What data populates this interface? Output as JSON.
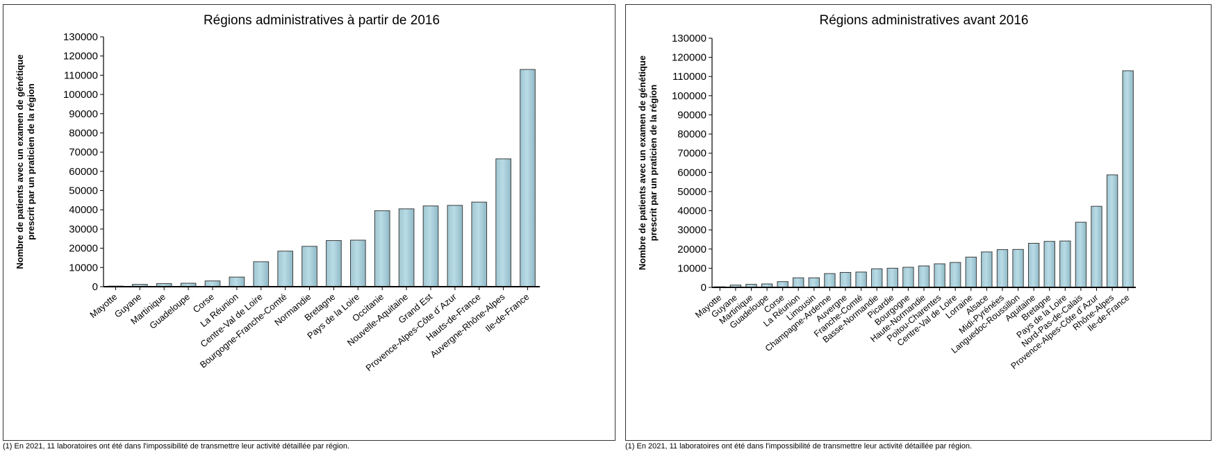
{
  "chart_data": [
    {
      "type": "bar",
      "title": "Régions administratives à partir de 2016",
      "ylabel_lines": [
        "Nombre de patients avec un examen de génétique",
        "prescrit par un praticien de la région"
      ],
      "xlabel": "",
      "ylim": [
        0,
        130000
      ],
      "yticks": [
        "0",
        "10000",
        "20000",
        "30000",
        "40000",
        "50000",
        "60000",
        "70000",
        "80000",
        "90000",
        "100000",
        "110000",
        "120000",
        "130000"
      ],
      "grid": false,
      "bar_color": "#b9dce6",
      "categories": [
        "Mayotte",
        "Guyane",
        "Martinique",
        "Guadeloupe",
        "Corse",
        "La Réunion",
        "Centre-Val de Loire",
        "Bourgogne-Franche-Comté",
        "Normandie",
        "Bretagne",
        "Pays de la Loire",
        "Occitanie",
        "Nouvelle-Aquitaine",
        "Grand Est",
        "Provence-Alpes-Côte d´Azur",
        "Hauts-de-France",
        "Auvergne-Rhône-Alpes",
        "Ile-de-France"
      ],
      "values": [
        300,
        1200,
        1600,
        1800,
        3000,
        5000,
        13000,
        18500,
        21000,
        24000,
        24200,
        39500,
        40500,
        42000,
        42300,
        44000,
        66500,
        113000
      ]
    },
    {
      "type": "bar",
      "title": "Régions administratives avant 2016",
      "ylabel_lines": [
        "Nombre de patients avec un examen de génétique",
        "prescrit par un praticien de la région"
      ],
      "xlabel": "",
      "ylim": [
        0,
        130000
      ],
      "yticks": [
        "0",
        "10000",
        "20000",
        "30000",
        "40000",
        "50000",
        "60000",
        "70000",
        "80000",
        "90000",
        "100000",
        "110000",
        "120000",
        "130000"
      ],
      "grid": false,
      "bar_color": "#b9dce6",
      "categories": [
        "Mayotte",
        "Guyane",
        "Martinique",
        "Guadeloupe",
        "Corse",
        "La Réunion",
        "Limousin",
        "Champagne-Ardenne",
        "Auvergne",
        "Franche-Comté",
        "Basse-Normandie",
        "Picardie",
        "Bourgogne",
        "Haute-Normandie",
        "Poitou-Charentes",
        "Centre-Val de Loire",
        "Lorraine",
        "Alsace",
        "Midi-Pyrénées",
        "Languedoc-Roussillon",
        "Aquitaine",
        "Bretagne",
        "Pays de la Loire",
        "Nord-Pas-de-Calais",
        "Provence-Alpes-Côte d´Azur",
        "Rhône-Alpes",
        "Ile-de-France"
      ],
      "values": [
        300,
        1200,
        1600,
        1800,
        3000,
        5000,
        5000,
        7200,
        7800,
        8000,
        9700,
        10000,
        10500,
        11200,
        12300,
        13000,
        15800,
        18500,
        19700,
        19800,
        23000,
        24000,
        24200,
        34000,
        42300,
        58700,
        113000
      ]
    }
  ],
  "footnotes": {
    "left": "(1) En 2021, 11 laboratoires ont été dans l'impossibilité de transmettre leur activité détaillée par région.",
    "right": "(1) En 2021, 11 laboratoires ont été dans l'impossibilité de transmettre leur activité détaillée par région."
  }
}
